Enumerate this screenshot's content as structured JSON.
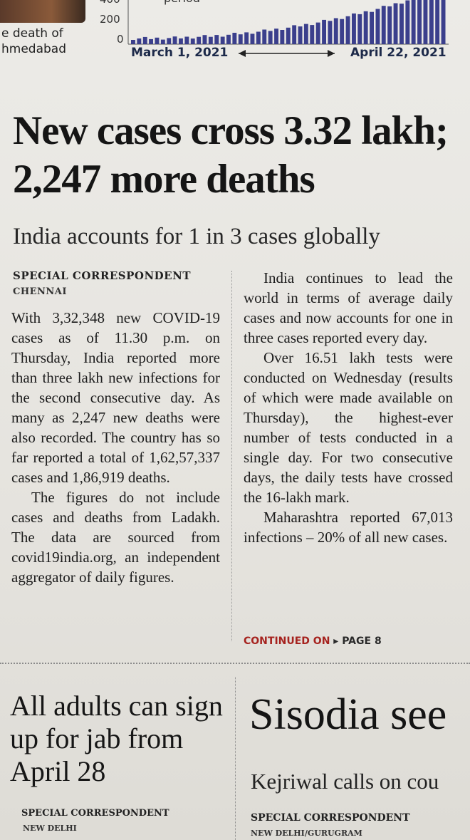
{
  "top_strip": {
    "photo_caption": "e death of\nhmedabad",
    "mini_chart": {
      "top_word": "period",
      "yticks": [
        "400",
        "200",
        "0"
      ],
      "start_date": "March 1, 2021",
      "end_date": "April 22, 2021",
      "bar_color": "#3b3f8c",
      "axis_arrow": "◀————————▶"
    }
  },
  "main_story": {
    "headline": "New cases cross 3.32 lakh; 2,247 more deaths",
    "subhead": "India accounts for 1 in 3 cases globally",
    "byline": "SPECIAL CORRESPONDENT",
    "dateline": "CHENNAI",
    "col1": [
      "With 3,32,348 new COVID-19 cases as of 11.30 p.m. on Thursday, India reported more than three lakh new infections for the second consecutive day. As many as 2,247 new deaths were also recorded. The country has so far reported a total of 1,62,57,337 cases and 1,86,919 deaths.",
      "The figures do not include cases and deaths from Ladakh. The data are sourced from covid19india.org, an independent aggregator of daily figures."
    ],
    "col2": [
      "India continues to lead the world in terms of average daily cases and now accounts for one in three cases reported every day.",
      "Over 16.51 lakh tests were conducted on Wednesday (results of which were made available on Thursday), the highest-ever number of tests conducted in a single day. For two consecutive days, the daily tests have crossed the 16-lakh mark.",
      "Maharashtra reported 67,013 infections – 20% of all new cases."
    ],
    "continued_label": "CONTINUED ON",
    "continued_page": "PAGE 8"
  },
  "story2": {
    "headline": "All adults can sign up for jab from April 28",
    "byline": "SPECIAL CORRESPONDENT",
    "dateline": "NEW DELHI"
  },
  "story3": {
    "headline": "Sisodia see",
    "subhead": "Kejriwal calls on cou",
    "byline": "SPECIAL CORRESPONDENT",
    "dateline": "NEW DELHI/GURUGRAM"
  }
}
